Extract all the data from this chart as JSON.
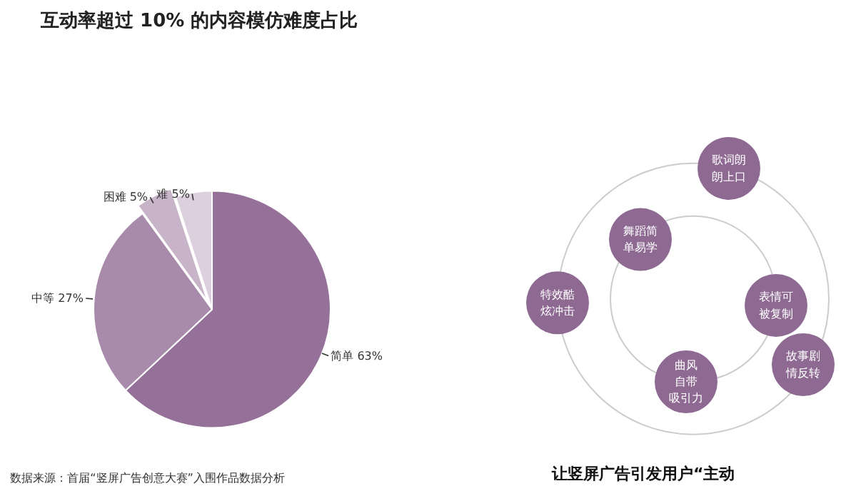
{
  "chart_data": [
    {
      "type": "pie",
      "title": "互动率超过 10% 的内容模仿难度占比",
      "categories": [
        "简单",
        "中等",
        "困难",
        "难"
      ],
      "values": [
        63,
        27,
        5,
        5
      ],
      "value_labels": [
        "63%",
        "27%",
        "5%",
        "5%"
      ],
      "colors": [
        "#957099",
        "#a88bab",
        "#c8b4c9",
        "#ddd0de"
      ],
      "annotations": [
        "数据来源：首届“竖屏广告创意大赛”入围作品数据分析"
      ]
    },
    {
      "type": "other",
      "title": "让竖屏广告引发用户“主动",
      "annotations": [
        "歌词朗朗上口",
        "舞蹈简单易学",
        "特效酷炫冲击",
        "表情可被复制",
        "故事剧情反转",
        "曲风自带吸引力"
      ]
    }
  ]
}
